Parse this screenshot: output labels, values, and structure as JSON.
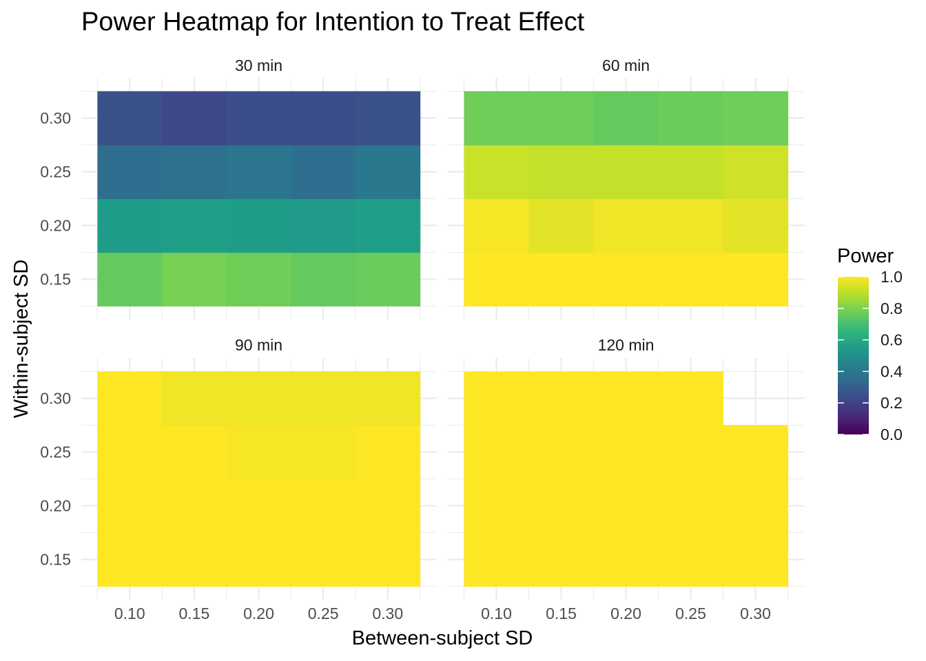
{
  "chart_data": {
    "type": "heatmap",
    "title": "Power Heatmap for Intention to Treat Effect",
    "xlabel": "Between-subject SD",
    "ylabel": "Within-subject SD",
    "x": [
      0.1,
      0.15,
      0.2,
      0.25,
      0.3
    ],
    "y": [
      0.15,
      0.2,
      0.25,
      0.3
    ],
    "x_tick_labels": [
      "0.10",
      "0.15",
      "0.20",
      "0.25",
      "0.30"
    ],
    "y_tick_labels": [
      "0.15",
      "0.20",
      "0.25",
      "0.30"
    ],
    "legend": {
      "title": "Power",
      "position": "right",
      "ticks": [
        0.0,
        0.2,
        0.4,
        0.6,
        0.8,
        1.0
      ],
      "tick_labels": [
        "0.0",
        "0.2",
        "0.4",
        "0.6",
        "0.8",
        "1.0"
      ],
      "colormap": "viridis",
      "limits": [
        0,
        1
      ]
    },
    "grid": true,
    "panels": [
      {
        "label": "30 min",
        "values": [
          [
            0.76,
            0.79,
            0.78,
            0.76,
            0.77
          ],
          [
            0.55,
            0.56,
            0.55,
            0.54,
            0.56
          ],
          [
            0.36,
            0.37,
            0.39,
            0.36,
            0.4
          ],
          [
            0.25,
            0.22,
            0.24,
            0.24,
            0.25
          ]
        ]
      },
      {
        "label": "60 min",
        "values": [
          [
            1.0,
            1.0,
            1.0,
            1.0,
            1.0
          ],
          [
            0.99,
            0.96,
            0.98,
            0.98,
            0.96
          ],
          [
            0.92,
            0.91,
            0.91,
            0.91,
            0.93
          ],
          [
            0.78,
            0.78,
            0.76,
            0.77,
            0.78
          ]
        ]
      },
      {
        "label": "90 min",
        "values": [
          [
            1.0,
            1.0,
            1.0,
            1.0,
            1.0
          ],
          [
            1.0,
            1.0,
            1.0,
            1.0,
            1.0
          ],
          [
            1.0,
            1.0,
            0.99,
            0.99,
            1.0
          ],
          [
            1.0,
            0.98,
            0.98,
            0.98,
            0.98
          ]
        ]
      },
      {
        "label": "120 min",
        "values": [
          [
            1.0,
            1.0,
            1.0,
            1.0,
            1.0
          ],
          [
            1.0,
            1.0,
            1.0,
            1.0,
            1.0
          ],
          [
            1.0,
            1.0,
            1.0,
            1.0,
            1.0
          ],
          [
            1.0,
            1.0,
            1.0,
            1.0,
            null
          ]
        ]
      }
    ]
  }
}
